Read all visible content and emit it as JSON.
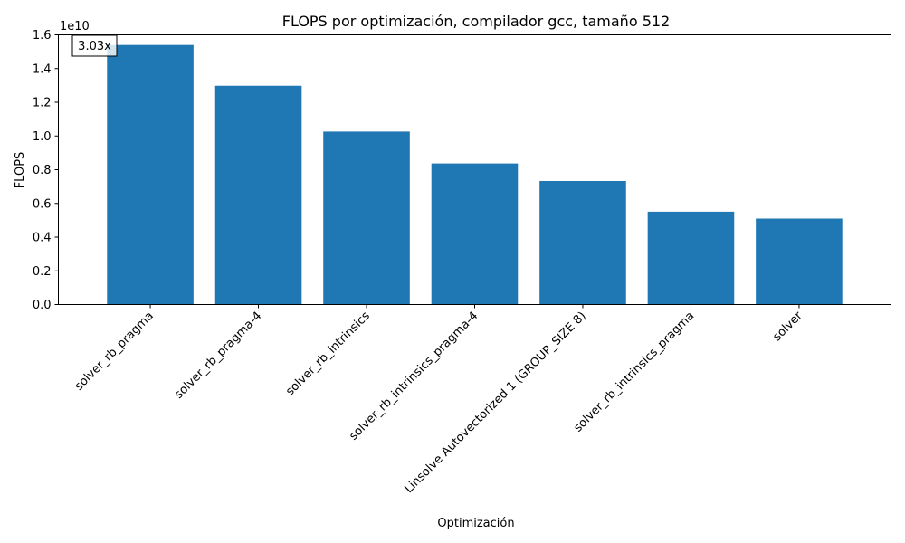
{
  "chart_data": {
    "type": "bar",
    "title": "FLOPS por optimización, compilador gcc, tamaño 512",
    "xlabel": "Optimización",
    "ylabel": "FLOPS",
    "y_multiplier": "1e10",
    "y_scale": 10000000000,
    "categories": [
      "solver_rb_pragma",
      "solver_rb_pragma-4",
      "solver_rb_intrinsics",
      "solver_rb_intrinsics_pragma-4",
      "Linsolve Autovectorized 1 (GROUP_SIZE 8)",
      "solver_rb_intrinsics_pragma",
      "solver"
    ],
    "values": [
      15400000000,
      12980000000,
      10260000000,
      8370000000,
      7330000000,
      5510000000,
      5100000000
    ],
    "ylim": [
      0,
      16000000000
    ],
    "yticks": [
      0,
      2000000000,
      4000000000,
      6000000000,
      8000000000,
      10000000000,
      12000000000,
      14000000000,
      16000000000
    ],
    "ytick_labels": [
      "0.0",
      "0.2",
      "0.4",
      "0.6",
      "0.8",
      "1.0",
      "1.2",
      "1.4",
      "1.6"
    ],
    "annotation": "3.03x",
    "grid": false,
    "bar_color": "#1f77b4"
  }
}
